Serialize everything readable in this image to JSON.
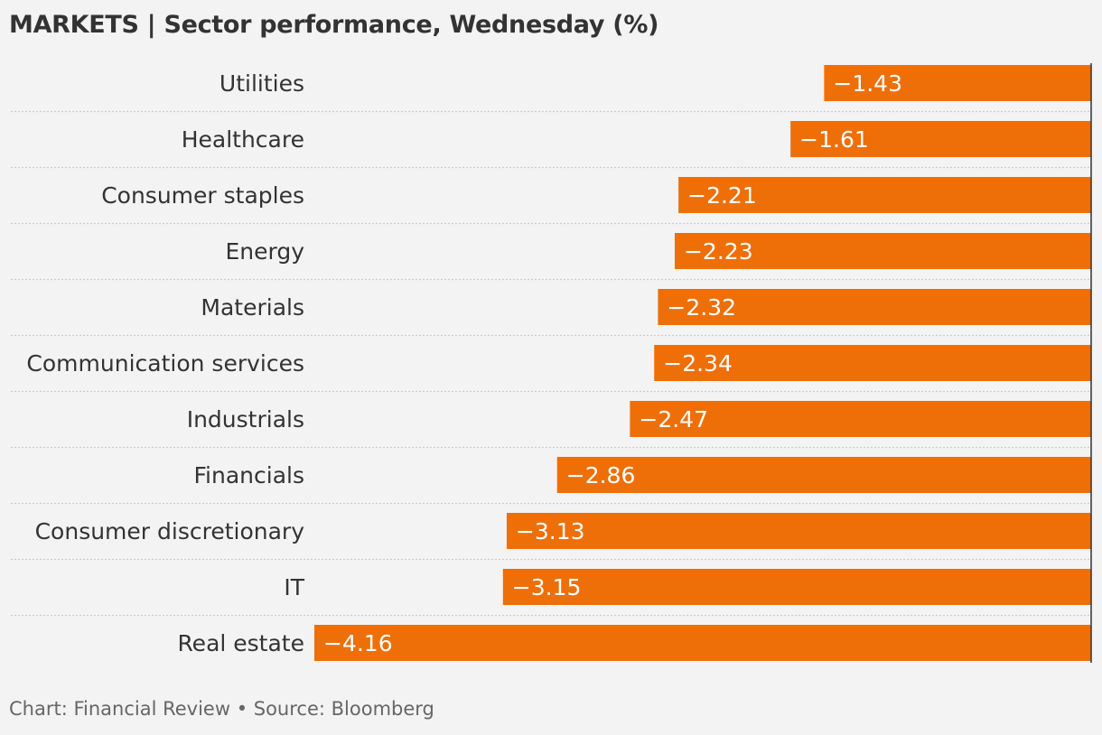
{
  "header": {
    "title": "MARKETS | Sector performance, Wednesday (%)"
  },
  "footer": {
    "credit": "Chart: Financial Review • Source: Bloomberg"
  },
  "colors": {
    "bar": "#ee6f08",
    "background": "#f3f3f3",
    "text": "#333333",
    "gridline": "#cccccc",
    "axis": "#333333"
  },
  "chart_data": {
    "type": "bar",
    "orientation": "horizontal",
    "title": "MARKETS | Sector performance, Wednesday (%)",
    "categories": [
      "Utilities",
      "Healthcare",
      "Consumer staples",
      "Energy",
      "Materials",
      "Communication services",
      "Industrials",
      "Financials",
      "Consumer discretionary",
      "IT",
      "Real estate"
    ],
    "values": [
      -1.43,
      -1.61,
      -2.21,
      -2.23,
      -2.32,
      -2.34,
      -2.47,
      -2.86,
      -3.13,
      -3.15,
      -4.16
    ],
    "value_labels": [
      "−1.43",
      "−1.61",
      "−2.21",
      "−2.23",
      "−2.32",
      "−2.34",
      "−2.47",
      "−2.86",
      "−3.13",
      "−3.15",
      "−4.16"
    ],
    "xlim": [
      -4.16,
      0
    ],
    "xlabel": "",
    "ylabel": "",
    "grid": false,
    "legend": "none"
  }
}
